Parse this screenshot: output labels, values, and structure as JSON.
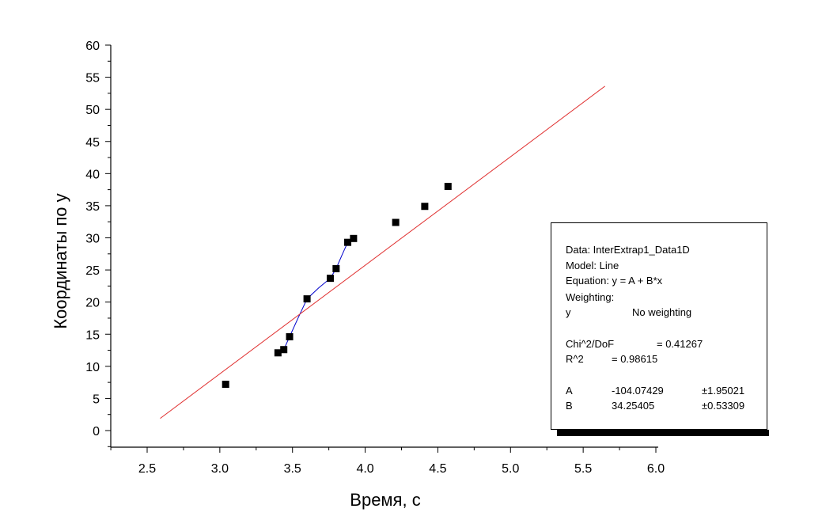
{
  "chart_data": {
    "type": "scatter",
    "xlabel": "Время, с",
    "ylabel": "Координаты по y",
    "xlim": [
      2.3,
      6.0
    ],
    "ylim": [
      -2.5,
      60
    ],
    "x_ticks": [
      "2.5",
      "3.0",
      "3.5",
      "4.0",
      "4.5",
      "5.0",
      "5.5",
      "6.0"
    ],
    "x_tick_values": [
      2.5,
      3.0,
      3.5,
      4.0,
      4.5,
      5.0,
      5.5,
      6.0
    ],
    "y_ticks": [
      "0",
      "5",
      "10",
      "15",
      "20",
      "25",
      "30",
      "35",
      "40",
      "45",
      "50",
      "55",
      "60"
    ],
    "y_tick_values": [
      0,
      5,
      10,
      15,
      20,
      25,
      30,
      35,
      40,
      45,
      50,
      55,
      60
    ],
    "series": [
      {
        "type": "scatter",
        "marker": "square",
        "color": "#000000",
        "x": [
          3.04,
          3.4,
          3.44,
          3.48,
          3.6,
          3.76,
          3.8,
          3.88,
          3.92,
          4.21,
          4.41,
          4.57
        ],
        "y": [
          7.2,
          12.1,
          12.6,
          14.6,
          20.5,
          23.7,
          25.2,
          29.3,
          29.9,
          32.4,
          34.9,
          38.0
        ]
      },
      {
        "type": "line",
        "color": "#0000cc",
        "x": [
          3.4,
          3.44,
          3.48,
          3.54,
          3.6,
          3.68,
          3.76,
          3.8,
          3.84,
          3.88,
          3.92
        ],
        "y": [
          12.1,
          12.6,
          14.6,
          17.6,
          20.5,
          22.2,
          23.7,
          25.2,
          27.3,
          29.3,
          29.9
        ]
      },
      {
        "type": "line",
        "color": "#e03030",
        "x": [
          2.59,
          5.65
        ],
        "y": [
          1.9,
          53.6
        ]
      }
    ]
  },
  "fit_box": {
    "data_line": "Data: InterExtrap1_Data1D",
    "model_line": "Model: Line",
    "equation_line": "Equation: y = A + B*x",
    "weighting_label": "Weighting:",
    "weighting_var": "y",
    "weighting_value": "No weighting",
    "chi_label": "Chi^2/DoF",
    "chi_value": "= 0.41267",
    "r2_label": "R^2",
    "r2_value": "=  0.98615",
    "param_a_name": "A",
    "param_a_value": "-104.07429",
    "param_a_error": "±1.95021",
    "param_b_name": "B",
    "param_b_value": "34.25405",
    "param_b_error": "±0.53309"
  }
}
